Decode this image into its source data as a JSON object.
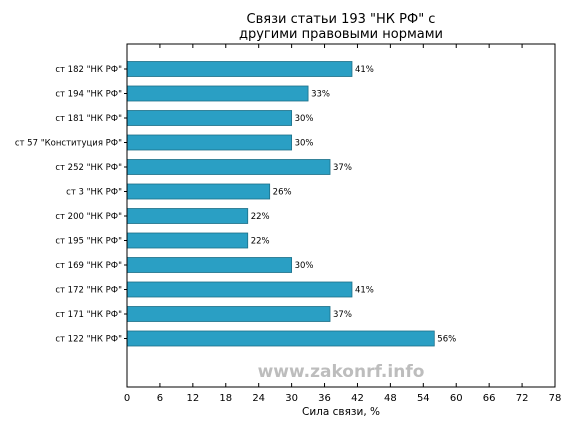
{
  "chart_data": {
    "type": "bar",
    "orientation": "horizontal",
    "title_lines": [
      "Связи статьи 193 \"НК РФ\" с",
      "другими правовыми нормами"
    ],
    "categories": [
      "ст 182 \"НК РФ\"",
      "ст 194 \"НК РФ\"",
      "ст 181 \"НК РФ\"",
      "ст 57 \"Конституция РФ\"",
      "ст 252 \"НК РФ\"",
      "ст 3 \"НК РФ\"",
      "ст 200 \"НК РФ\"",
      "ст 195 \"НК РФ\"",
      "ст 169 \"НК РФ\"",
      "ст 172 \"НК РФ\"",
      "ст 171 \"НК РФ\"",
      "ст 122 \"НК РФ\""
    ],
    "values": [
      41,
      33,
      30,
      30,
      37,
      26,
      22,
      22,
      30,
      41,
      37,
      56
    ],
    "value_labels": [
      "41%",
      "33%",
      "30%",
      "30%",
      "37%",
      "26%",
      "22%",
      "22%",
      "30%",
      "41%",
      "37%",
      "56%"
    ],
    "xlabel": "Сила связи, %",
    "xlim": [
      0,
      78
    ],
    "xticks": [
      0,
      6,
      12,
      18,
      24,
      30,
      36,
      42,
      48,
      54,
      60,
      66,
      72,
      78
    ],
    "bar_color": "#2a9fc4",
    "bar_edge_color": "#1d6f88",
    "grid": false,
    "watermark": "www.zakonrf.info"
  }
}
